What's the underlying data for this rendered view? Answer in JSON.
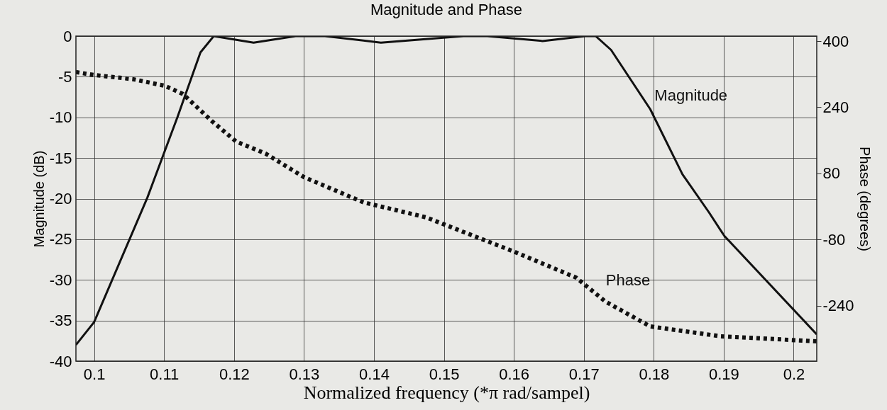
{
  "chart_data": {
    "type": "line",
    "title": "Magnitude and Phase",
    "xlabel": "Normalized frequency (*π rad/sampel)",
    "ylabel": "Magnitude (dB)",
    "y2label": "Phase (degrees)",
    "xlim": [
      0.0974,
      0.2033
    ],
    "xticks": [
      0.1,
      0.11,
      0.12,
      0.13,
      0.14,
      0.15,
      0.16,
      0.17,
      0.18,
      0.19,
      0.2
    ],
    "ylim": [
      -40,
      0
    ],
    "yticks": [
      -40,
      -35,
      -30,
      -25,
      -20,
      -15,
      -10,
      -5,
      0
    ],
    "y2lim": [
      -374,
      412
    ],
    "y2ticks": [
      -240,
      -80,
      80,
      240,
      400
    ],
    "grid": true,
    "legend": false,
    "series": [
      {
        "name": "Magnitude",
        "color": "#111111",
        "line_style": "solid",
        "x": [
          0.0974,
          0.1,
          0.1076,
          0.1119,
          0.1152,
          0.1171,
          0.1228,
          0.1288,
          0.133,
          0.141,
          0.1528,
          0.1562,
          0.1641,
          0.1702,
          0.1717,
          0.1739,
          0.1795,
          0.1841,
          0.1879,
          0.1901,
          0.2033
        ],
        "values": [
          -38,
          -35.2,
          -19.9,
          -10,
          -2,
          0,
          -0.8,
          0,
          0,
          -0.8,
          0,
          0,
          -0.6,
          0,
          0,
          -1.7,
          -9,
          -17,
          -21.7,
          -24.6,
          -36.7
        ]
      },
      {
        "name": "Phase",
        "color": "#111111",
        "line_style": "dotted",
        "axis": "y2",
        "x": [
          0.0974,
          0.1,
          0.1055,
          0.1101,
          0.1127,
          0.1168,
          0.1203,
          0.1245,
          0.13,
          0.1385,
          0.1474,
          0.16,
          0.1689,
          0.1731,
          0.1795,
          0.1896,
          0.2033
        ],
        "values": [
          325,
          318,
          308,
          292,
          272,
          207,
          157,
          128,
          71,
          10,
          -26,
          -109,
          -172,
          -230,
          -290,
          -314,
          -326
        ]
      }
    ]
  }
}
